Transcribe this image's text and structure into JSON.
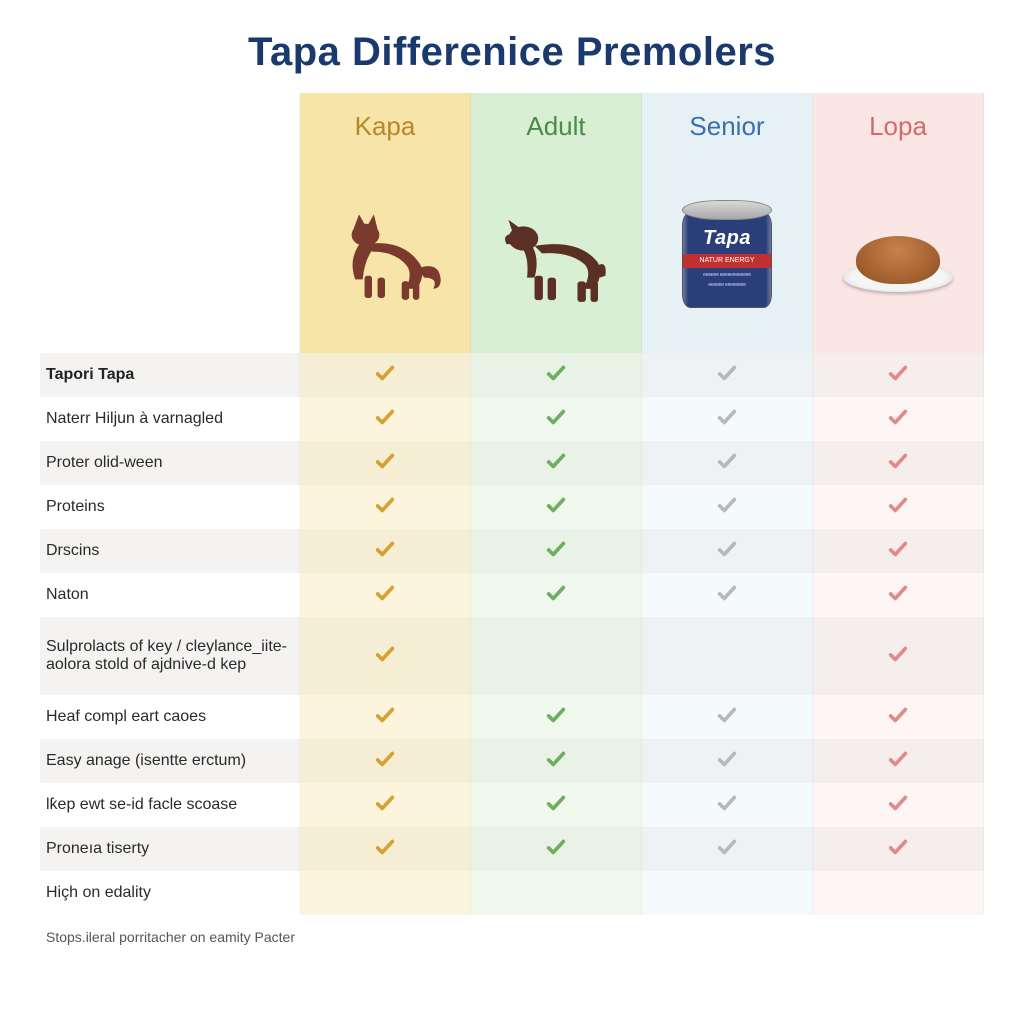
{
  "title": "Tapa Differenice Premolers",
  "footnote": "Stops.ileral porritacher on eamity Pacter",
  "columns": [
    {
      "label": "Kapa",
      "label_color": "#b8872a",
      "bg": "#f7e4a8",
      "check_color": "#d6a133",
      "illus": "cat",
      "illus_color": "#7a3a2e"
    },
    {
      "label": "Adult",
      "label_color": "#4a8a4a",
      "bg": "#d9efd4",
      "check_color": "#6fae60",
      "illus": "dog",
      "illus_color": "#5a3024"
    },
    {
      "label": "Senior",
      "label_color": "#3a6fae",
      "bg": "#e6f1f6",
      "check_color": "#b5b9bc",
      "illus": "can",
      "illus_color": "#2a3e7a"
    },
    {
      "label": "Lopa",
      "label_color": "#d46a6a",
      "bg": "#fbe6e6",
      "check_color": "#e08a8a",
      "illus": "kibble",
      "illus_color": "#a05e2e"
    }
  ],
  "rows": [
    {
      "label": "Tapori Tapa",
      "bold": true,
      "checks": [
        true,
        true,
        true,
        true
      ]
    },
    {
      "label": "Naterr Hiljun à varnagled",
      "bold": false,
      "checks": [
        true,
        true,
        true,
        true
      ]
    },
    {
      "label": "Proter olid-ween",
      "bold": false,
      "checks": [
        true,
        true,
        true,
        true
      ]
    },
    {
      "label": "Proteins",
      "bold": false,
      "checks": [
        true,
        true,
        true,
        true
      ]
    },
    {
      "label": "Drscins",
      "bold": false,
      "checks": [
        true,
        true,
        true,
        true
      ]
    },
    {
      "label": "Naton",
      "bold": false,
      "checks": [
        true,
        true,
        true,
        true
      ]
    },
    {
      "label": "Sulprolacts of key / cleylance_iite-aolora stold of ajdnive-d kep",
      "bold": false,
      "tall": true,
      "checks": [
        true,
        null,
        null,
        true
      ]
    },
    {
      "label": "Heaf compl eart caoes",
      "bold": false,
      "checks": [
        true,
        true,
        true,
        true
      ]
    },
    {
      "label": "Easy anage (isentte erctum)",
      "bold": false,
      "checks": [
        true,
        true,
        true,
        true
      ]
    },
    {
      "label": "lƙep ewt se-id facle scoase",
      "bold": false,
      "checks": [
        true,
        true,
        true,
        true
      ]
    },
    {
      "label": "Proneıa tiserty",
      "bold": false,
      "checks": [
        true,
        true,
        true,
        true
      ]
    },
    {
      "label": "Hiçh on edality",
      "bold": false,
      "checks": [
        null,
        null,
        null,
        null
      ]
    }
  ],
  "row_stripe_colors": {
    "odd": "#f4f3f1",
    "even": "#ffffff"
  },
  "can_brand": "Tapa",
  "can_strip_text": "NATUR ENERGY"
}
